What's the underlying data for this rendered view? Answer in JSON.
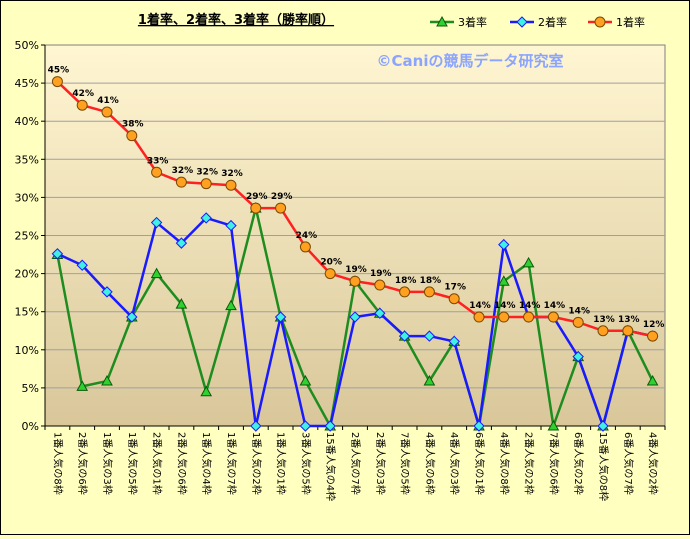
{
  "chart_data": {
    "type": "line",
    "title": "1着率、2着率、3着率（勝率順）",
    "watermark": "©Caniの競馬データ研究室",
    "xlabel": "",
    "ylabel": "",
    "ylim": [
      0,
      50
    ],
    "yticks": [
      "0%",
      "5%",
      "10%",
      "15%",
      "20%",
      "25%",
      "30%",
      "35%",
      "40%",
      "45%",
      "50%"
    ],
    "grid": true,
    "legend_position": "top-right",
    "categories": [
      "1番人気の8枠",
      "2番人気の6枠",
      "1番人気の3枠",
      "1番人気の5枠",
      "2番人気の1枠",
      "2番人気の6枠",
      "1番人気の4枠",
      "1番人気の7枠",
      "1番人気の2枠",
      "1番人気の1枠",
      "3番人気の5枠",
      "15番人気の4枠",
      "2番人気の7枠",
      "2番人気の3枠",
      "7番人気の5枠",
      "4番人気の6枠",
      "4番人気の3枠",
      "6番人気の1枠",
      "4番人気の8枠",
      "2番人気の2枠",
      "7番人気の6枠",
      "6番人気の2枠",
      "15番人気の8枠",
      "6番人気の7枠",
      "4番人気の2枠"
    ],
    "series": [
      {
        "name": "3着率",
        "color": "#1e8c1e",
        "marker": "triangle",
        "values": [
          22.5,
          5.2,
          5.9,
          14.3,
          20.0,
          16.0,
          4.5,
          15.8,
          28.6,
          14.3,
          5.9,
          0,
          19.0,
          14.8,
          11.8,
          5.9,
          11.1,
          0,
          19.0,
          21.4,
          0,
          9.1,
          0,
          12.5,
          5.9
        ]
      },
      {
        "name": "2着率",
        "color": "#1a1aff",
        "marker": "diamond",
        "values": [
          22.6,
          21.1,
          17.6,
          14.3,
          26.7,
          24.0,
          27.3,
          26.3,
          0,
          14.3,
          0,
          0,
          14.3,
          14.8,
          11.8,
          11.8,
          11.1,
          0,
          23.8,
          14.3,
          14.3,
          9.1,
          0,
          12.5,
          11.8
        ]
      },
      {
        "name": "1着率",
        "color": "#ff2020",
        "marker": "circle",
        "values": [
          45.2,
          42.1,
          41.2,
          38.1,
          33.3,
          32.0,
          31.8,
          31.6,
          28.6,
          28.6,
          23.5,
          20.0,
          19.0,
          18.5,
          17.6,
          17.6,
          16.7,
          14.3,
          14.3,
          14.3,
          14.3,
          13.6,
          12.5,
          12.5,
          11.8
        ],
        "labels": [
          "45%",
          "42%",
          "41%",
          "38%",
          "33%",
          "32%",
          "32%",
          "32%",
          "29%",
          "29%",
          "24%",
          "20%",
          "19%",
          "19%",
          "18%",
          "18%",
          "17%",
          "14%",
          "14%",
          "14%",
          "14%",
          "14%",
          "13%",
          "13%",
          "12%"
        ]
      }
    ]
  }
}
